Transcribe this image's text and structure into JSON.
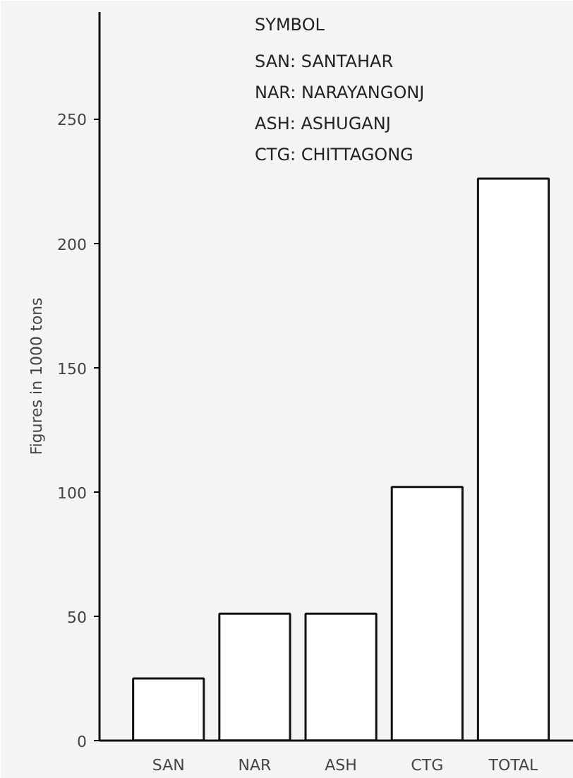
{
  "chart_data": {
    "type": "bar",
    "ylabel": "Figures in 1000 tons",
    "categories": [
      "SAN",
      "NAR",
      "ASH",
      "CTG",
      "TOTAL"
    ],
    "values": [
      25,
      51,
      51,
      102,
      226
    ],
    "color": "#ffffff",
    "ylim": [
      0,
      293
    ],
    "yticks": [
      0,
      50,
      100,
      150,
      200,
      250
    ],
    "grid": false,
    "annotations": [
      "SYMBOL",
      "SAN: SANTAHAR",
      "NAR: NARAYANGONJ",
      "ASH: ASHUGANJ",
      "CTG: CHITTAGONG"
    ]
  }
}
